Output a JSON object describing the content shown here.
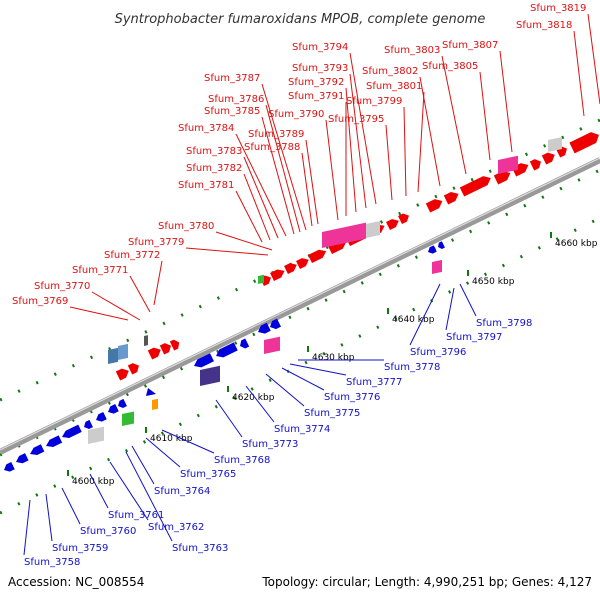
{
  "title": "Syntrophobacter fumaroxidans MPOB, complete genome",
  "accession_label": "Accession: NC_008554",
  "topology_label": "Topology: circular; Length: 4,990,251 bp; Genes: 4,127",
  "colors": {
    "forward_label": "#dd1111",
    "reverse_label": "#1111cc",
    "cds_forward": "#ee0000",
    "cds_reverse": "#0000dd",
    "rrna": "#ee3399",
    "trna": "#33bb33",
    "misc": "#cccccc",
    "backbone": "#999999",
    "tick": "#117711"
  },
  "kbp_ticks": [
    {
      "label": "4600 kbp"
    },
    {
      "label": "4610 kbp"
    },
    {
      "label": "4620 kbp"
    },
    {
      "label": "4630 kbp"
    },
    {
      "label": "4640 kbp"
    },
    {
      "label": "4650 kbp"
    },
    {
      "label": "4660 kbp"
    }
  ],
  "forward_labels": [
    "Sfum_3769",
    "Sfum_3770",
    "Sfum_3771",
    "Sfum_3772",
    "Sfum_3779",
    "Sfum_3780",
    "Sfum_3781",
    "Sfum_3782",
    "Sfum_3783",
    "Sfum_3784",
    "Sfum_3785",
    "Sfum_3786",
    "Sfum_3787",
    "Sfum_3788",
    "Sfum_3789",
    "Sfum_3790",
    "Sfum_3791",
    "Sfum_3792",
    "Sfum_3793",
    "Sfum_3794",
    "Sfum_3795",
    "Sfum_3799",
    "Sfum_3801",
    "Sfum_3802",
    "Sfum_3803",
    "Sfum_3805",
    "Sfum_3807",
    "Sfum_3818",
    "Sfum_3819"
  ],
  "reverse_labels": [
    "Sfum_3758",
    "Sfum_3759",
    "Sfum_3760",
    "Sfum_3761",
    "Sfum_3762",
    "Sfum_3763",
    "Sfum_3764",
    "Sfum_3765",
    "Sfum_3768",
    "Sfum_3773",
    "Sfum_3774",
    "Sfum_3775",
    "Sfum_3776",
    "Sfum_3777",
    "Sfum_3778",
    "Sfum_3796",
    "Sfum_3797",
    "Sfum_3798"
  ]
}
